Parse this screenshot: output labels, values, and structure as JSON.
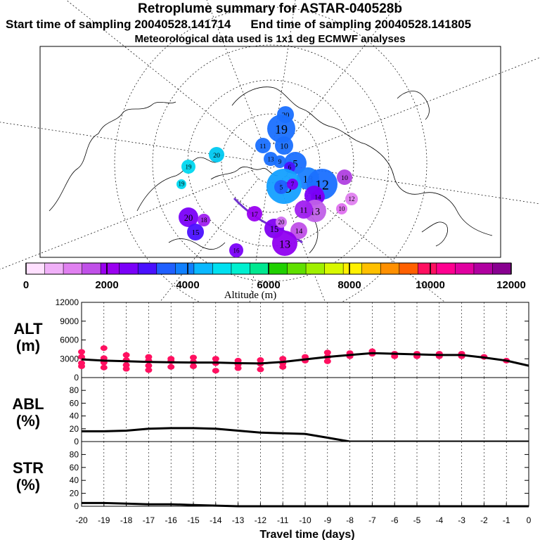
{
  "header": {
    "title": "Retroplume summary for ASTAR-040528b",
    "start_time": "Start time of sampling 20040528.141714",
    "end_time": "End time of sampling 20040528.141805",
    "met_data": "Meteorological data used is 1x1 deg ECMWF analyses"
  },
  "map": {
    "plume_labels": [
      "20",
      "19",
      "11",
      "10",
      "5",
      "13",
      "9",
      "6",
      "20",
      "19",
      "18",
      "15",
      "10",
      "12",
      "8",
      "5",
      "7",
      "14",
      "13",
      "11",
      "19",
      "20",
      "17",
      "15",
      "14",
      "13",
      "12",
      "10",
      "20",
      "15",
      "18",
      "16"
    ]
  },
  "colorbar": {
    "title": "Altitude (m)",
    "tick_labels": [
      "0",
      "2000",
      "4000",
      "6000",
      "8000",
      "10000",
      "12000"
    ],
    "colors": [
      "#ffe0ff",
      "#f0b0f8",
      "#e080f0",
      "#c050e8",
      "#9a00f0",
      "#7a00f8",
      "#4a10ff",
      "#2060ff",
      "#1080ff",
      "#0ab8ff",
      "#00e0f0",
      "#00f0d0",
      "#00e890",
      "#20d000",
      "#60e000",
      "#a0f000",
      "#d8f800",
      "#fff000",
      "#ffc000",
      "#ff9000",
      "#ff6000",
      "#ff1060",
      "#ff0090",
      "#e000a0",
      "#b000a0",
      "#880090"
    ]
  },
  "chart_data": [
    {
      "type": "line",
      "panel": "ALT",
      "ylabel": "ALT\n(m)",
      "ylabel_lines": [
        "ALT",
        "(m)"
      ],
      "ylim": [
        0,
        12000
      ],
      "yticks": [
        0,
        3000,
        6000,
        9000,
        12000
      ],
      "ytick_labels": [
        "0",
        "3000",
        "6000",
        "9000",
        "12000"
      ],
      "x": [
        -20,
        -19,
        -18,
        -17,
        -16,
        -15,
        -14,
        -13,
        -12,
        -11,
        -10,
        -9,
        -8,
        -7,
        -6,
        -5,
        -4,
        -3,
        -2,
        -1,
        0
      ],
      "series": [
        {
          "name": "mean altitude",
          "values": [
            2900,
            2700,
            2600,
            2500,
            2450,
            2400,
            2400,
            2300,
            2250,
            2500,
            2900,
            3300,
            3600,
            3900,
            3800,
            3700,
            3600,
            3600,
            3200,
            2700,
            1900
          ]
        }
      ],
      "scatter_points": [
        {
          "x": -20,
          "y": 4100
        },
        {
          "x": -20,
          "y": 3300
        },
        {
          "x": -20,
          "y": 1800
        },
        {
          "x": -20,
          "y": 2300
        },
        {
          "x": -19,
          "y": 4700
        },
        {
          "x": -19,
          "y": 3100
        },
        {
          "x": -19,
          "y": 2400
        },
        {
          "x": -19,
          "y": 1600
        },
        {
          "x": -18,
          "y": 3600
        },
        {
          "x": -18,
          "y": 2800
        },
        {
          "x": -18,
          "y": 2000
        },
        {
          "x": -18,
          "y": 1400
        },
        {
          "x": -17,
          "y": 3300
        },
        {
          "x": -17,
          "y": 2700
        },
        {
          "x": -17,
          "y": 1900
        },
        {
          "x": -17,
          "y": 1200
        },
        {
          "x": -16,
          "y": 3000
        },
        {
          "x": -16,
          "y": 2600
        },
        {
          "x": -16,
          "y": 1700
        },
        {
          "x": -15,
          "y": 3200
        },
        {
          "x": -15,
          "y": 2500
        },
        {
          "x": -15,
          "y": 1800
        },
        {
          "x": -14,
          "y": 3000
        },
        {
          "x": -14,
          "y": 2300
        },
        {
          "x": -14,
          "y": 1100
        },
        {
          "x": -13,
          "y": 2700
        },
        {
          "x": -13,
          "y": 2100
        },
        {
          "x": -13,
          "y": 1500
        },
        {
          "x": -12,
          "y": 2800
        },
        {
          "x": -12,
          "y": 2200
        },
        {
          "x": -12,
          "y": 1300
        },
        {
          "x": -11,
          "y": 3000
        },
        {
          "x": -11,
          "y": 2300
        },
        {
          "x": -11,
          "y": 1700
        },
        {
          "x": -10,
          "y": 3300
        },
        {
          "x": -10,
          "y": 2700
        },
        {
          "x": -9,
          "y": 4000
        },
        {
          "x": -9,
          "y": 3300
        },
        {
          "x": -9,
          "y": 2600
        },
        {
          "x": -8,
          "y": 3900
        },
        {
          "x": -8,
          "y": 3400
        },
        {
          "x": -7,
          "y": 4200
        },
        {
          "x": -7,
          "y": 3800
        },
        {
          "x": -6,
          "y": 3800
        },
        {
          "x": -6,
          "y": 3400
        },
        {
          "x": -5,
          "y": 3800
        },
        {
          "x": -5,
          "y": 3400
        },
        {
          "x": -4,
          "y": 3800
        },
        {
          "x": -4,
          "y": 3400
        },
        {
          "x": -3,
          "y": 3800
        },
        {
          "x": -3,
          "y": 3400
        },
        {
          "x": -2,
          "y": 3300
        },
        {
          "x": -1,
          "y": 2700
        }
      ]
    },
    {
      "type": "line",
      "panel": "ABL",
      "ylabel": "ABL\n(%)",
      "ylabel_lines": [
        "ABL",
        "(%)"
      ],
      "ylim": [
        0,
        100
      ],
      "yticks": [
        0,
        20,
        40,
        60,
        80
      ],
      "ytick_labels": [
        "0",
        "20",
        "40",
        "60",
        "80"
      ],
      "x": [
        -20,
        -19,
        -18,
        -17,
        -16,
        -15,
        -14,
        -13,
        -12,
        -11,
        -10,
        -9,
        -8,
        -7,
        -6,
        -5,
        -4,
        -3,
        -2,
        -1,
        0
      ],
      "series": [
        {
          "name": "ABL fraction",
          "values": [
            16,
            16,
            17,
            20,
            21,
            21,
            20,
            17,
            14,
            13,
            12,
            6,
            0,
            0,
            0,
            0,
            0,
            0,
            0,
            0,
            0
          ]
        }
      ]
    },
    {
      "type": "line",
      "panel": "STR",
      "ylabel": "STR\n(%)",
      "ylabel_lines": [
        "STR",
        "(%)"
      ],
      "ylim": [
        0,
        100
      ],
      "yticks": [
        0,
        20,
        40,
        60,
        80
      ],
      "ytick_labels": [
        "0",
        "20",
        "40",
        "60",
        "80"
      ],
      "x": [
        -20,
        -19,
        -18,
        -17,
        -16,
        -15,
        -14,
        -13,
        -12,
        -11,
        -10,
        -9,
        -8,
        -7,
        -6,
        -5,
        -4,
        -3,
        -2,
        -1,
        0
      ],
      "series": [
        {
          "name": "STR fraction",
          "values": [
            5,
            5,
            4,
            3,
            3,
            2,
            1,
            0,
            0,
            0,
            0,
            0,
            0,
            0,
            0,
            0,
            0,
            0,
            0,
            0,
            0
          ]
        }
      ],
      "xlabel": "Travel time (days)",
      "xtick_labels": [
        "-20",
        "-19",
        "-18",
        "-17",
        "-16",
        "-15",
        "-14",
        "-13",
        "-12",
        "-11",
        "-10",
        "-9",
        "-8",
        "-7",
        "-6",
        "-5",
        "-4",
        "-3",
        "-2",
        "-1",
        "0"
      ]
    }
  ]
}
